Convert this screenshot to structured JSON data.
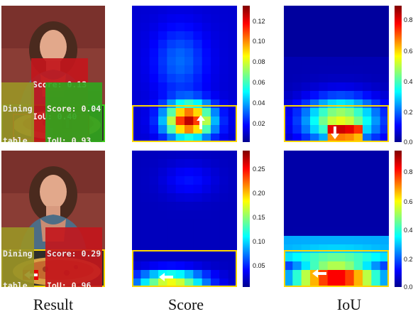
{
  "rows": [
    {
      "result": {
        "labels": [
          {
            "id": "score-iou-red",
            "lines": [
              "Score: 0.13",
              "IoU: 0.40"
            ],
            "color": "#c4161c"
          },
          {
            "id": "dining-table",
            "lines": [
              "Dining",
              "table"
            ],
            "color": "#9a9326"
          },
          {
            "id": "score-iou-green",
            "lines": [
              "Score: 0.04",
              "IoU: 0.93"
            ],
            "color": "#32a41e"
          }
        ]
      },
      "score_map": {
        "colorbar_ticks": [
          "0.12",
          "0.10",
          "0.08",
          "0.06",
          "0.04",
          "0.02"
        ],
        "colorbar_max": 0.13
      },
      "iou_map": {
        "colorbar_ticks": [
          "0.8",
          "0.6",
          "0.4",
          "0.2",
          "0.0"
        ],
        "colorbar_max": 0.9
      }
    },
    {
      "result": {
        "labels": [
          {
            "id": "dining-table",
            "lines": [
              "Dining",
              "table"
            ],
            "color": "#9a9326"
          },
          {
            "id": "score-iou-red",
            "lines": [
              "Score: 0.29",
              "IoU: 0.96"
            ],
            "color": "#c4161c"
          }
        ]
      },
      "score_map": {
        "colorbar_ticks": [
          "0.25",
          "0.20",
          "0.15",
          "0.10",
          "0.05"
        ],
        "colorbar_max": 0.28
      },
      "iou_map": {
        "colorbar_ticks": [
          "0.8",
          "0.6",
          "0.4",
          "0.2",
          "0.0"
        ],
        "colorbar_max": 0.9
      }
    }
  ],
  "captions": {
    "result": "Result",
    "score": "Score",
    "iou": "IoU"
  },
  "colors": {
    "bbox_yellow": "#ffd700",
    "bbox_red": "#e60000",
    "bbox_green": "#3ecf1a",
    "arrow": "#ffffff"
  }
}
